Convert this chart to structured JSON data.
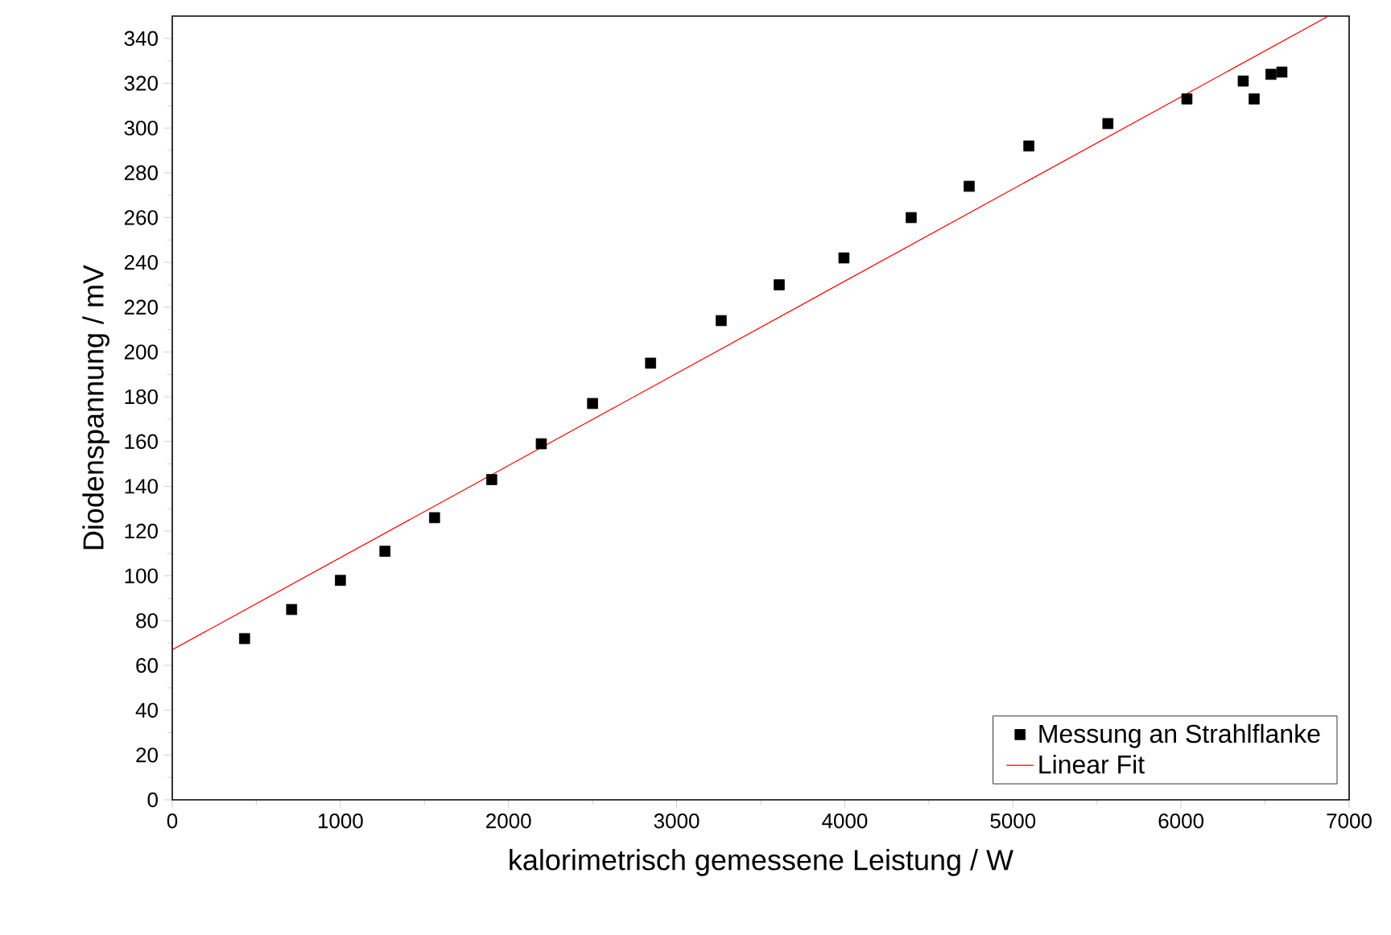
{
  "chart_data": {
    "type": "scatter",
    "xlabel": "kalorimetrisch gemessene Leistung / W",
    "ylabel": "Diodenspannung / mV",
    "xlim": [
      0,
      7000
    ],
    "ylim": [
      0,
      350
    ],
    "xticks": [
      0,
      1000,
      2000,
      3000,
      4000,
      5000,
      6000,
      7000
    ],
    "yticks": [
      0,
      20,
      40,
      60,
      80,
      100,
      120,
      140,
      160,
      180,
      200,
      220,
      240,
      260,
      280,
      300,
      320,
      340
    ],
    "legend": "bottom right",
    "grid": false,
    "series": [
      {
        "name": "Messung an Strahlflanke",
        "marker": "square",
        "color": "#000000",
        "x": [
          430,
          710,
          1000,
          1265,
          1560,
          1900,
          2195,
          2500,
          2845,
          3265,
          3610,
          3995,
          4395,
          4740,
          5095,
          5565,
          6035,
          6370,
          6435,
          6535,
          6600
        ],
        "values": [
          72,
          85,
          98,
          111,
          126,
          143,
          159,
          177,
          195,
          214,
          230,
          242,
          260,
          274,
          292,
          302,
          313,
          321,
          313,
          324,
          325
        ]
      },
      {
        "name": "Linear Fit",
        "type": "line",
        "marker": "none",
        "line_style": "solid",
        "color": "#ff0000",
        "x": [
          0,
          6877
        ],
        "values": [
          67,
          350
        ]
      }
    ]
  }
}
